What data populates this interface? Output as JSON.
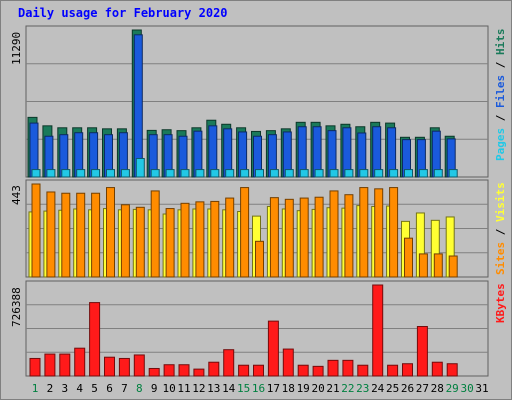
{
  "chart_data": {
    "type": "bar",
    "title": "Daily usage for February 2020",
    "categories": [
      "1",
      "2",
      "3",
      "4",
      "5",
      "6",
      "7",
      "8",
      "9",
      "10",
      "11",
      "12",
      "13",
      "14",
      "15",
      "16",
      "17",
      "18",
      "19",
      "20",
      "21",
      "22",
      "23",
      "24",
      "25",
      "26",
      "27",
      "28",
      "29",
      "30",
      "31"
    ],
    "weekend_days": [
      "1",
      "8",
      "15",
      "16",
      "22",
      "23",
      "29",
      "30"
    ],
    "panels": [
      {
        "id": "hits-files-pages",
        "ymax_label": "11290",
        "ylim": [
          0,
          11290
        ],
        "axis_labels": [
          "Pages",
          "Files",
          "Hits"
        ],
        "series": [
          {
            "name": "Hits",
            "color": "#1a7a5a",
            "values": [
              4580,
              3930,
              3780,
              3780,
              3780,
              3700,
              3700,
              11290,
              3580,
              3630,
              3560,
              3780,
              4360,
              4050,
              3780,
              3500,
              3560,
              3700,
              4200,
              4200,
              3930,
              4050,
              3860,
              4200,
              4140,
              3050,
              3050,
              3780,
              3130,
              0,
              0
            ]
          },
          {
            "name": "Files",
            "color": "#1a5adc",
            "values": [
              4140,
              3130,
              3250,
              3400,
              3400,
              3250,
              3400,
              10920,
              3250,
              3250,
              3130,
              3520,
              3930,
              3700,
              3460,
              3130,
              3250,
              3460,
              3860,
              3860,
              3560,
              3780,
              3380,
              3860,
              3780,
              2870,
              2870,
              3520,
              2930,
              0,
              0
            ]
          },
          {
            "name": "Pages",
            "color": "#22c8e6",
            "values": [
              570,
              570,
              570,
              570,
              570,
              570,
              570,
              1420,
              570,
              570,
              570,
              570,
              570,
              570,
              570,
              570,
              570,
              570,
              570,
              570,
              570,
              570,
              570,
              570,
              570,
              570,
              570,
              570,
              570,
              0,
              0
            ]
          }
        ]
      },
      {
        "id": "visits-sites",
        "ymax_label": "443",
        "ylim": [
          0,
          443
        ],
        "axis_labels": [
          "Sites",
          "Visits"
        ],
        "series": [
          {
            "name": "Visits",
            "color": "#ffff33",
            "values": [
              310,
              314,
              318,
              324,
              320,
              326,
              320,
              322,
              320,
              300,
              320,
              324,
              324,
              320,
              312,
              290,
              336,
              324,
              316,
              322,
              330,
              328,
              340,
              336,
              338,
              265,
              305,
              270,
              286,
              0,
              0
            ]
          },
          {
            "name": "Sites",
            "color": "#ff8c00",
            "values": [
              443,
              405,
              399,
              399,
              399,
              426,
              344,
              332,
              410,
              326,
              351,
              358,
              360,
              376,
              426,
              170,
              378,
              370,
              376,
              380,
              410,
              392,
              426,
              420,
              426,
              185,
              110,
              110,
              100,
              0,
              0
            ]
          }
        ]
      },
      {
        "id": "kbytes",
        "ymax_label": "726388",
        "ylim": [
          0,
          726388
        ],
        "axis_labels": [
          "KBytes"
        ],
        "series": [
          {
            "name": "KBytes",
            "color": "#ff1a1a",
            "values": [
              140000,
              175000,
              175000,
              222000,
              586000,
              150000,
              140000,
              168000,
              60000,
              90000,
              90000,
              55000,
              110000,
              210000,
              86000,
              86000,
              438000,
              215000,
              86000,
              77000,
              125000,
              125000,
              86000,
              726388,
              86000,
              98000,
              395000,
              110000,
              98000,
              0,
              0
            ]
          }
        ]
      }
    ]
  }
}
